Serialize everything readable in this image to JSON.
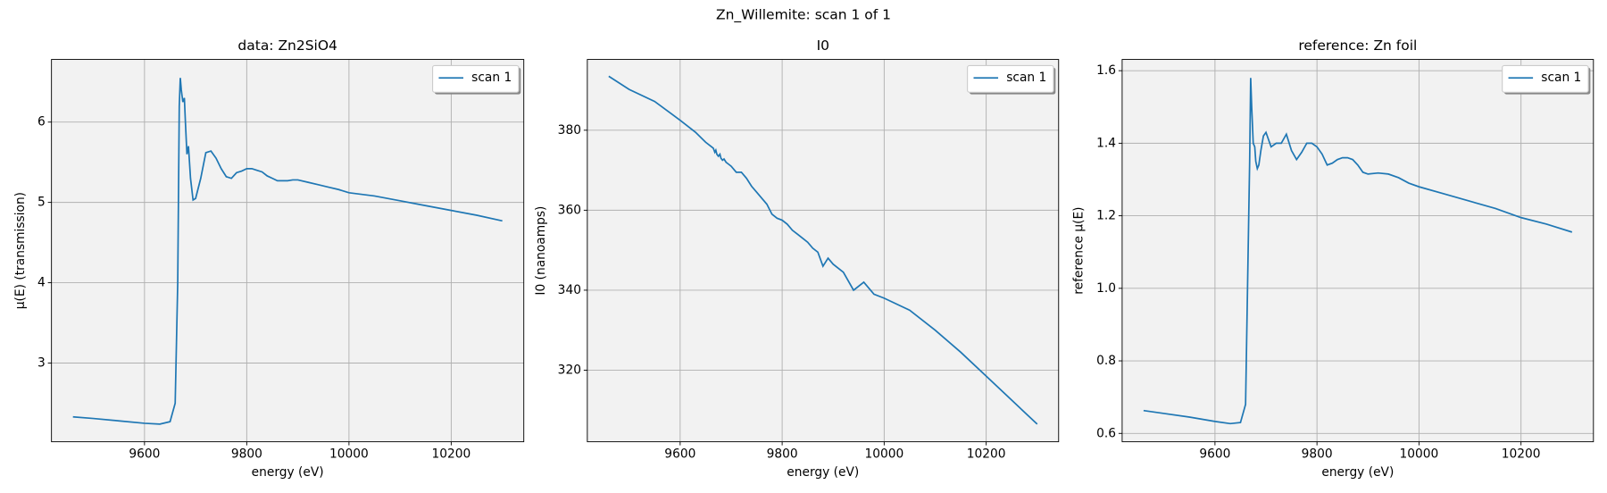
{
  "title": "Zn_Willemite: scan 1 of 1",
  "chart_data": [
    {
      "type": "line",
      "title": "data: Zn2SiO4",
      "xlabel": "energy (eV)",
      "ylabel": "μ(E) (transmission)",
      "x": [
        9460,
        9500,
        9550,
        9600,
        9630,
        9650,
        9660,
        9665,
        9668,
        9670,
        9672,
        9675,
        9678,
        9680,
        9683,
        9686,
        9690,
        9695,
        9700,
        9710,
        9720,
        9730,
        9740,
        9750,
        9760,
        9770,
        9780,
        9790,
        9800,
        9810,
        9820,
        9830,
        9840,
        9850,
        9860,
        9870,
        9880,
        9890,
        9900,
        9920,
        9940,
        9960,
        9980,
        10000,
        10050,
        10100,
        10150,
        10200,
        10250,
        10300
      ],
      "series": [
        {
          "name": "scan 1",
          "color": "#1f77b4",
          "values": [
            2.33,
            2.31,
            2.28,
            2.25,
            2.24,
            2.27,
            2.5,
            4.0,
            6.2,
            6.55,
            6.4,
            6.25,
            6.3,
            6.0,
            5.6,
            5.7,
            5.3,
            5.03,
            5.05,
            5.3,
            5.62,
            5.64,
            5.55,
            5.42,
            5.32,
            5.3,
            5.37,
            5.39,
            5.42,
            5.42,
            5.4,
            5.38,
            5.33,
            5.3,
            5.27,
            5.27,
            5.27,
            5.28,
            5.28,
            5.25,
            5.22,
            5.19,
            5.16,
            5.12,
            5.08,
            5.02,
            4.96,
            4.9,
            4.84,
            4.77
          ]
        }
      ],
      "xlim": [
        9418,
        10342
      ],
      "xticks": [
        9600,
        9800,
        10000,
        10200
      ],
      "ylim": [
        2.02,
        6.78
      ],
      "yticks": [
        3,
        4,
        5,
        6
      ],
      "grid": true,
      "legend": "upper right"
    },
    {
      "type": "line",
      "title": "I0",
      "xlabel": "energy (eV)",
      "ylabel": "I0 (nanoamps)",
      "x": [
        9460,
        9500,
        9550,
        9600,
        9630,
        9650,
        9660,
        9665,
        9668,
        9670,
        9672,
        9675,
        9678,
        9680,
        9683,
        9686,
        9690,
        9695,
        9700,
        9710,
        9720,
        9730,
        9740,
        9750,
        9760,
        9770,
        9780,
        9790,
        9800,
        9810,
        9820,
        9830,
        9840,
        9850,
        9860,
        9870,
        9880,
        9890,
        9900,
        9920,
        9940,
        9960,
        9980,
        10000,
        10050,
        10100,
        10150,
        10200,
        10250,
        10300
      ],
      "series": [
        {
          "name": "scan 1",
          "color": "#1f77b4",
          "values": [
            393.5,
            390.2,
            387.2,
            382.5,
            379.5,
            377.0,
            376.0,
            375.5,
            374.5,
            375.0,
            374.0,
            373.5,
            374.0,
            373.0,
            372.5,
            372.8,
            372.0,
            371.5,
            371.0,
            369.5,
            369.5,
            368.0,
            366.0,
            364.5,
            363.0,
            361.5,
            359.0,
            358.0,
            357.5,
            356.5,
            355.0,
            354.0,
            353.0,
            352.0,
            350.5,
            349.5,
            346.0,
            348.0,
            346.5,
            344.5,
            340.0,
            342.0,
            339.0,
            338.0,
            335.0,
            330.0,
            324.5,
            318.5,
            312.5,
            306.5
          ]
        }
      ],
      "xlim": [
        9418,
        10342
      ],
      "xticks": [
        9600,
        9800,
        10000,
        10200
      ],
      "ylim": [
        302.1,
        397.7
      ],
      "yticks": [
        320,
        340,
        360,
        380
      ],
      "grid": true,
      "legend": "upper right"
    },
    {
      "type": "line",
      "title": "reference: Zn foil",
      "xlabel": "energy (eV)",
      "ylabel": "reference μ(E)",
      "x": [
        9460,
        9500,
        9550,
        9600,
        9630,
        9650,
        9660,
        9665,
        9668,
        9670,
        9672,
        9675,
        9678,
        9680,
        9683,
        9686,
        9690,
        9695,
        9700,
        9710,
        9720,
        9730,
        9740,
        9750,
        9760,
        9770,
        9780,
        9790,
        9800,
        9810,
        9820,
        9830,
        9840,
        9850,
        9860,
        9870,
        9880,
        9890,
        9900,
        9920,
        9940,
        9960,
        9980,
        10000,
        10050,
        10100,
        10150,
        10200,
        10250,
        10300
      ],
      "series": [
        {
          "name": "scan 1",
          "color": "#1f77b4",
          "values": [
            0.663,
            0.655,
            0.645,
            0.633,
            0.627,
            0.63,
            0.68,
            1.1,
            1.35,
            1.58,
            1.5,
            1.4,
            1.39,
            1.35,
            1.33,
            1.34,
            1.38,
            1.42,
            1.43,
            1.39,
            1.4,
            1.4,
            1.425,
            1.38,
            1.355,
            1.375,
            1.4,
            1.4,
            1.39,
            1.37,
            1.34,
            1.345,
            1.355,
            1.36,
            1.36,
            1.355,
            1.34,
            1.32,
            1.315,
            1.318,
            1.315,
            1.305,
            1.29,
            1.28,
            1.26,
            1.24,
            1.22,
            1.195,
            1.177,
            1.155
          ]
        }
      ],
      "xlim": [
        9418,
        10342
      ],
      "xticks": [
        9600,
        9800,
        10000,
        10200
      ],
      "ylim": [
        0.577,
        1.631
      ],
      "yticks": [
        0.6,
        0.8,
        {
          "value": 1,
          "label": "1.0"
        },
        1.2,
        1.4,
        1.6
      ],
      "grid": true,
      "legend": "upper right"
    }
  ]
}
